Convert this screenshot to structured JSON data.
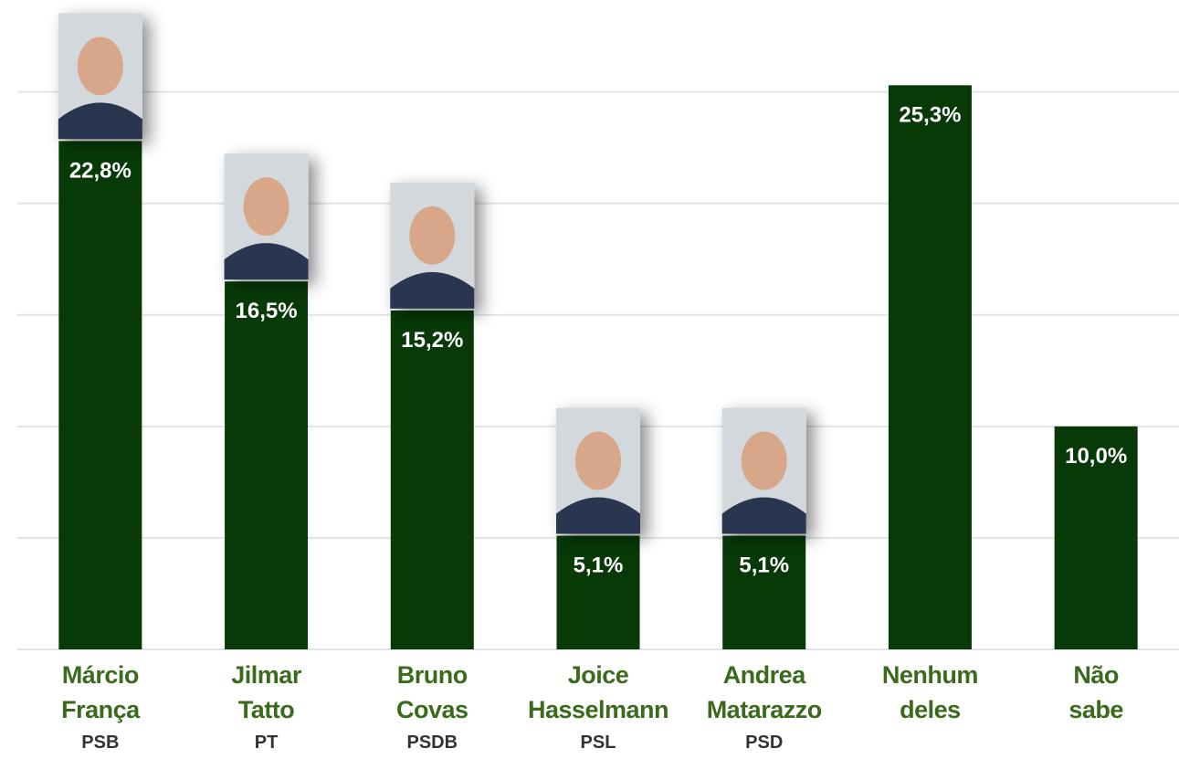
{
  "chart_data": {
    "type": "bar",
    "categories": [
      "Márcio França",
      "Jilmar Tatto",
      "Bruno Covas",
      "Joice Hasselmann",
      "Andrea Matarazzo",
      "Nenhum deles",
      "Não sabe"
    ],
    "parties": [
      "PSB",
      "PT",
      "PSDB",
      "PSL",
      "PSD",
      null,
      null
    ],
    "values": [
      22.8,
      16.5,
      15.2,
      5.1,
      5.1,
      25.3,
      10.0
    ],
    "value_labels": [
      "22,8%",
      "16,5%",
      "15,2%",
      "5,1%",
      "5,1%",
      "25,3%",
      "10,0%"
    ],
    "color": "#073a07",
    "ylim": [
      0,
      29
    ],
    "yticks": [
      0,
      5,
      10,
      15,
      20,
      25
    ],
    "grid": true
  }
}
